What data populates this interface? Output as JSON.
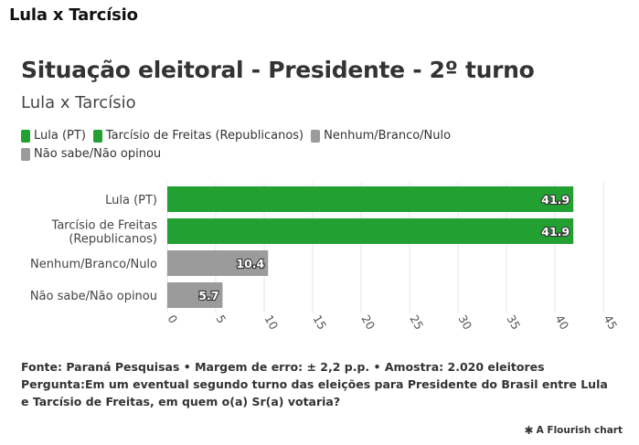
{
  "page_header": "Lula x Tarcísio",
  "colors": {
    "green": "#22a132",
    "gray": "#9b9b9b",
    "grid": "#e6e6e6"
  },
  "chart_data": {
    "type": "bar",
    "orientation": "horizontal",
    "title": "Situação eleitoral - Presidente - 2º turno",
    "subtitle": "Lula x Tarcísio",
    "categories": [
      [
        "Lula (PT)"
      ],
      [
        "Tarcísio de Freitas",
        "(Republicanos)"
      ],
      [
        "Nenhum/Branco/Nulo"
      ],
      [
        "Não sabe/Não opinou"
      ]
    ],
    "values": [
      41.9,
      41.9,
      10.4,
      5.7
    ],
    "value_labels": [
      "41.9",
      "41.9",
      "10.4",
      "5.7"
    ],
    "bar_colors": [
      "#22a132",
      "#22a132",
      "#9b9b9b",
      "#9b9b9b"
    ],
    "legend": [
      {
        "label": "Lula (PT)",
        "color": "#22a132"
      },
      {
        "label": "Tarcísio de Freitas (Republicanos)",
        "color": "#22a132"
      },
      {
        "label": "Nenhum/Branco/Nulo",
        "color": "#9b9b9b"
      },
      {
        "label": "Não sabe/Não opinou",
        "color": "#9b9b9b"
      }
    ],
    "xlim": [
      0,
      45
    ],
    "x_ticks": [
      0,
      5,
      10,
      15,
      20,
      25,
      30,
      35,
      40,
      45
    ],
    "grid": true,
    "legend_position": "top-left"
  },
  "footer": {
    "source": "Fonte: Paraná Pesquisas • Margem de erro: ± 2,2 p.p. • Amostra: 2.020 eleitores",
    "question": "Pergunta:Em um eventual segundo turno das eleições para Presidente do Brasil entre Lula e Tarcísio de Freitas, em quem o(a) Sr(a) votaria?",
    "credit": "A Flourish chart"
  }
}
